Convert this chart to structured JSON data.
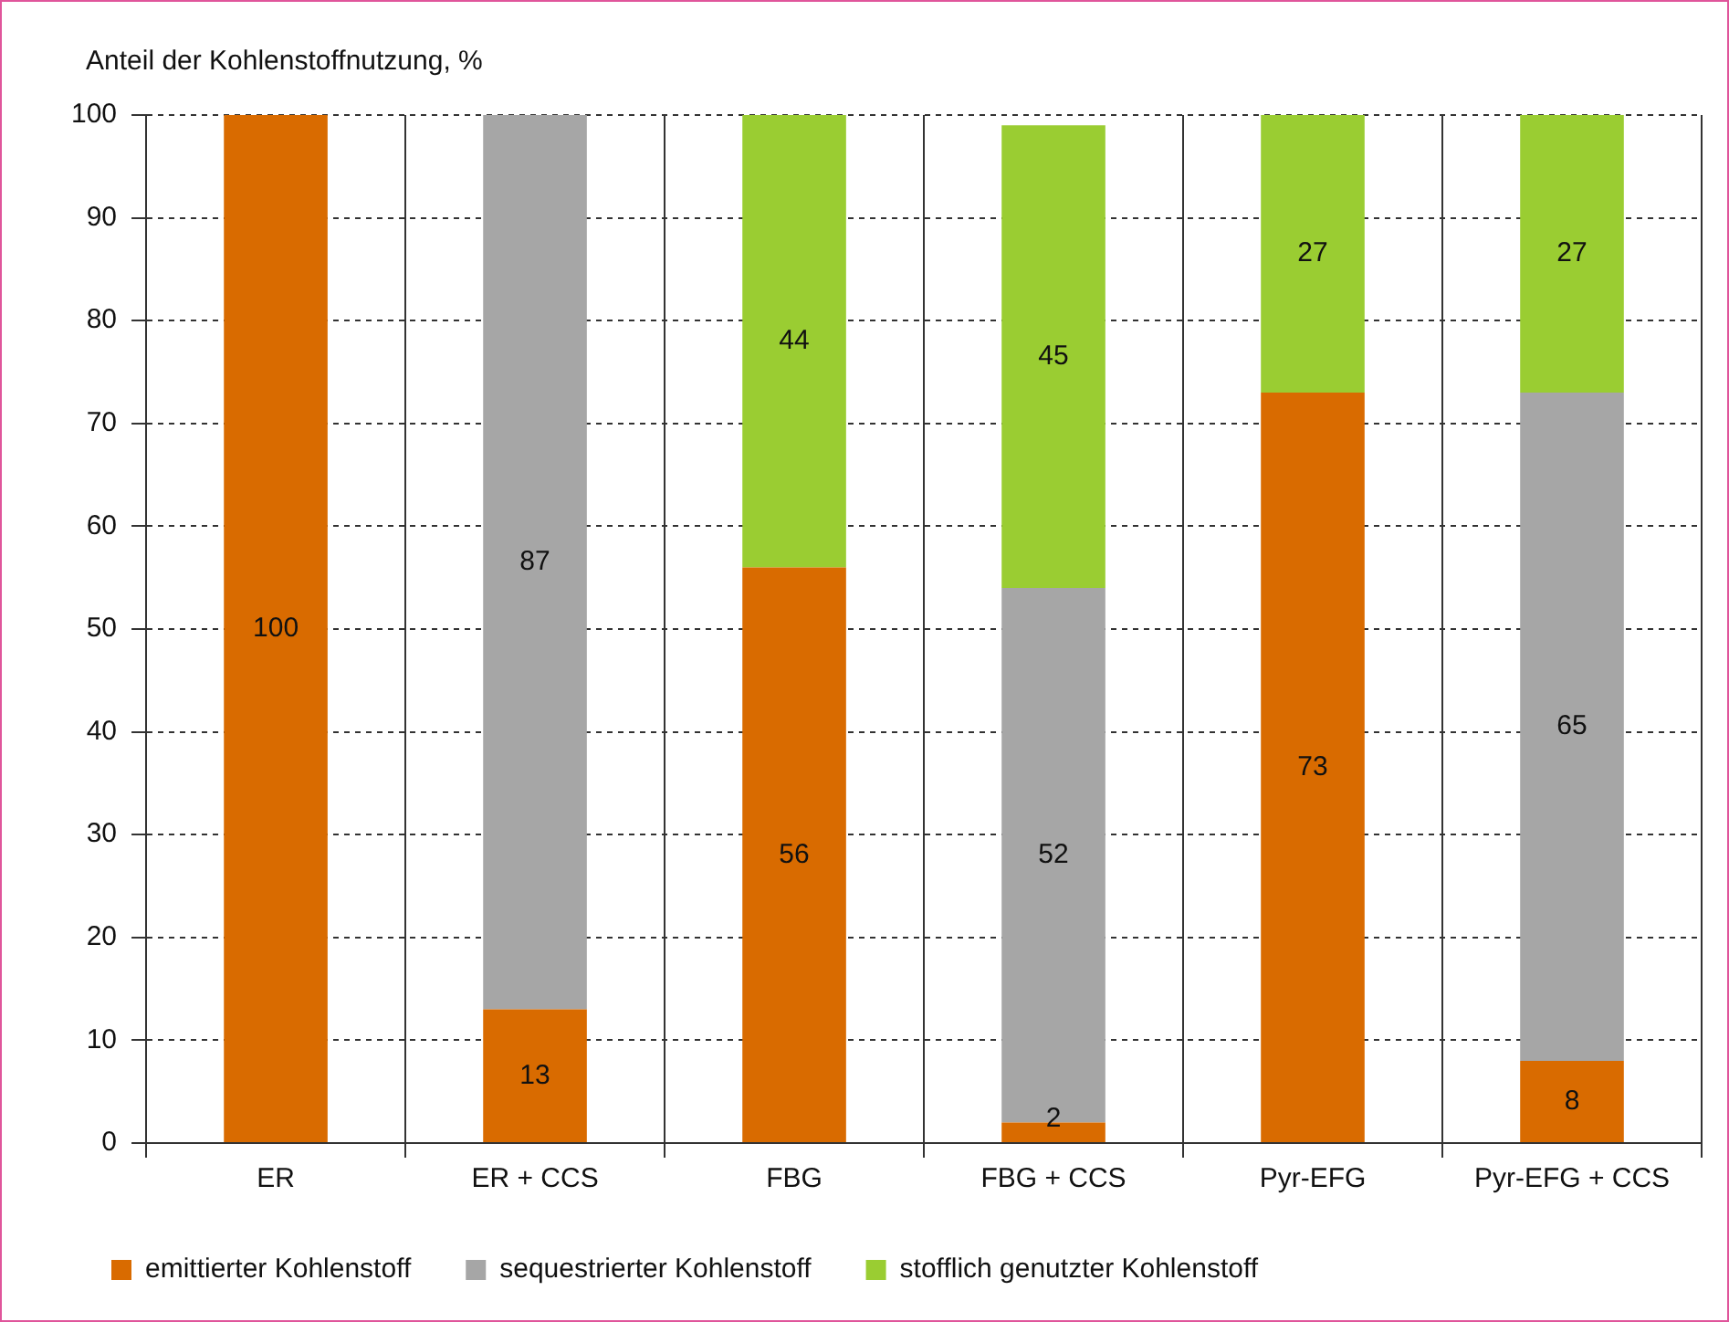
{
  "chart_data": {
    "type": "bar",
    "stacked": true,
    "ylabel": "Anteil der Kohlenstoffnutzung, %",
    "categories": [
      "ER",
      "ER + CCS",
      "FBG",
      "FBG + CCS",
      "Pyr-EFG",
      "Pyr-EFG + CCS"
    ],
    "series": [
      {
        "name": "emittierter Kohlenstoff",
        "color": "#d96b00",
        "values": [
          100,
          13,
          56,
          2,
          73,
          8
        ]
      },
      {
        "name": "sequestrierter Kohlenstoff",
        "color": "#a6a6a6",
        "values": [
          null,
          87,
          null,
          52,
          null,
          65
        ]
      },
      {
        "name": "stofflich genutzter Kohlenstoff",
        "color": "#9acd32",
        "values": [
          null,
          null,
          44,
          45,
          27,
          27
        ]
      }
    ],
    "ylim": [
      0,
      100
    ],
    "yticks": [
      0,
      10,
      20,
      30,
      40,
      50,
      60,
      70,
      80,
      90,
      100
    ],
    "grid": true,
    "legend": "bottom",
    "data_labels": true
  }
}
